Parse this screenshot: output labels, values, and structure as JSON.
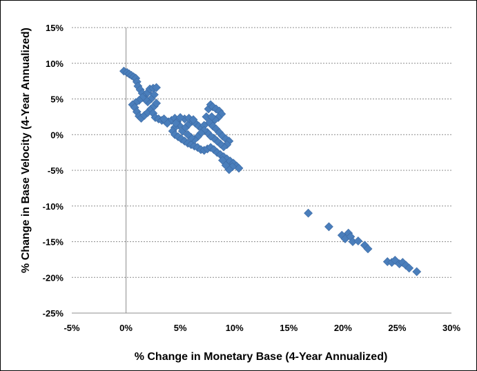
{
  "chart_data": {
    "type": "scatter",
    "title": "",
    "xlabel": "% Change in Monetary Base (4-Year Annualized)",
    "ylabel": "% Change in Base Velocity (4-Year Annualized)",
    "xlim": [
      -5,
      30
    ],
    "ylim": [
      -25,
      15
    ],
    "xticks": [
      -5,
      0,
      5,
      10,
      15,
      20,
      25,
      30
    ],
    "yticks": [
      -25,
      -20,
      -15,
      -10,
      -5,
      0,
      5,
      10,
      15
    ],
    "xtick_labels": [
      "-5%",
      "0%",
      "5%",
      "10%",
      "15%",
      "20%",
      "25%",
      "30%"
    ],
    "ytick_labels": [
      "-25%",
      "-20%",
      "-15%",
      "-10%",
      "-5%",
      "0%",
      "5%",
      "10%",
      "15%"
    ],
    "grid": {
      "horizontal": true,
      "vertical": false,
      "vertical_zero_line": true
    },
    "marker": {
      "shape": "diamond",
      "color": "#4A7EBB"
    },
    "series": [
      {
        "points": [
          [
            -0.2,
            8.9
          ],
          [
            0.1,
            8.7
          ],
          [
            0.3,
            8.5
          ],
          [
            0.5,
            8.3
          ],
          [
            0.7,
            8.1
          ],
          [
            0.9,
            7.9
          ],
          [
            1.0,
            7.4
          ],
          [
            1.1,
            6.8
          ],
          [
            1.3,
            6.3
          ],
          [
            1.5,
            5.8
          ],
          [
            1.7,
            5.4
          ],
          [
            2.0,
            5.9
          ],
          [
            2.2,
            6.4
          ],
          [
            2.5,
            6.5
          ],
          [
            2.8,
            6.6
          ],
          [
            2.6,
            5.6
          ],
          [
            2.3,
            5.0
          ],
          [
            2.0,
            4.6
          ],
          [
            1.8,
            4.9
          ],
          [
            1.5,
            5.2
          ],
          [
            1.2,
            4.8
          ],
          [
            0.9,
            4.5
          ],
          [
            0.6,
            4.2
          ],
          [
            0.8,
            3.8
          ],
          [
            1.0,
            3.2
          ],
          [
            1.2,
            2.6
          ],
          [
            1.4,
            2.3
          ],
          [
            1.7,
            2.7
          ],
          [
            2.0,
            3.1
          ],
          [
            2.3,
            3.6
          ],
          [
            2.6,
            4.0
          ],
          [
            2.8,
            4.4
          ],
          [
            2.5,
            3.0
          ],
          [
            2.7,
            2.4
          ],
          [
            3.0,
            2.2
          ],
          [
            3.3,
            2.0
          ],
          [
            3.6,
            1.9
          ],
          [
            3.9,
            1.8
          ],
          [
            4.2,
            2.0
          ],
          [
            4.5,
            2.3
          ],
          [
            4.7,
            1.8
          ],
          [
            4.9,
            1.3
          ],
          [
            4.5,
            1.0
          ],
          [
            4.3,
            0.5
          ],
          [
            4.5,
            0.0
          ],
          [
            4.8,
            -0.3
          ],
          [
            5.1,
            -0.6
          ],
          [
            5.4,
            -0.9
          ],
          [
            5.7,
            -1.2
          ],
          [
            6.0,
            -1.4
          ],
          [
            6.3,
            -1.6
          ],
          [
            6.6,
            -1.8
          ],
          [
            6.9,
            -2.1
          ],
          [
            7.2,
            -2.2
          ],
          [
            7.5,
            -2.0
          ],
          [
            7.8,
            -1.8
          ],
          [
            8.1,
            -2.1
          ],
          [
            8.4,
            -2.5
          ],
          [
            8.7,
            -2.8
          ],
          [
            9.0,
            -3.1
          ],
          [
            9.3,
            -3.4
          ],
          [
            9.6,
            -3.7
          ],
          [
            9.9,
            -4.0
          ],
          [
            10.2,
            -4.4
          ],
          [
            10.4,
            -4.7
          ],
          [
            9.8,
            -4.5
          ],
          [
            9.5,
            -4.9
          ],
          [
            9.2,
            -4.3
          ],
          [
            8.9,
            -3.6
          ],
          [
            5.2,
            0.5
          ],
          [
            5.5,
            1.0
          ],
          [
            5.8,
            1.5
          ],
          [
            6.1,
            1.9
          ],
          [
            6.4,
            1.6
          ],
          [
            6.7,
            1.2
          ],
          [
            7.0,
            0.9
          ],
          [
            7.2,
            1.3
          ],
          [
            7.4,
            2.5
          ],
          [
            7.6,
            3.6
          ],
          [
            7.8,
            4.2
          ],
          [
            8.0,
            3.9
          ],
          [
            8.3,
            3.6
          ],
          [
            8.6,
            3.3
          ],
          [
            8.8,
            2.9
          ],
          [
            8.5,
            2.4
          ],
          [
            8.2,
            2.1
          ],
          [
            7.9,
            2.5
          ],
          [
            7.7,
            1.7
          ],
          [
            8.0,
            1.2
          ],
          [
            8.3,
            0.8
          ],
          [
            8.6,
            0.3
          ],
          [
            8.9,
            -0.2
          ],
          [
            9.2,
            -0.6
          ],
          [
            9.5,
            -0.9
          ],
          [
            9.3,
            -1.4
          ],
          [
            9.0,
            -1.7
          ],
          [
            8.7,
            -1.3
          ],
          [
            8.4,
            -0.9
          ],
          [
            8.1,
            -0.5
          ],
          [
            7.8,
            -0.2
          ],
          [
            7.5,
            0.3
          ],
          [
            7.2,
            0.6
          ],
          [
            6.9,
            0.2
          ],
          [
            6.6,
            -0.3
          ],
          [
            6.3,
            -0.7
          ],
          [
            6.0,
            -0.4
          ],
          [
            5.7,
            0.0
          ],
          [
            5.4,
            2.2
          ],
          [
            5.8,
            2.3
          ],
          [
            6.2,
            2.1
          ],
          [
            4.6,
            1.6
          ],
          [
            5.0,
            2.4
          ],
          [
            3.8,
            1.6
          ],
          [
            3.5,
            2.2
          ],
          [
            16.8,
            -11.0
          ],
          [
            18.7,
            -12.9
          ],
          [
            19.9,
            -14.1
          ],
          [
            20.2,
            -14.6
          ],
          [
            20.5,
            -13.8
          ],
          [
            20.7,
            -14.3
          ],
          [
            20.9,
            -15.0
          ],
          [
            21.4,
            -14.9
          ],
          [
            22.0,
            -15.5
          ],
          [
            22.3,
            -16.0
          ],
          [
            24.1,
            -17.8
          ],
          [
            24.5,
            -17.9
          ],
          [
            24.8,
            -17.6
          ],
          [
            25.2,
            -18.1
          ],
          [
            25.5,
            -17.9
          ],
          [
            25.8,
            -18.3
          ],
          [
            26.1,
            -18.7
          ],
          [
            26.8,
            -19.2
          ]
        ]
      }
    ]
  }
}
